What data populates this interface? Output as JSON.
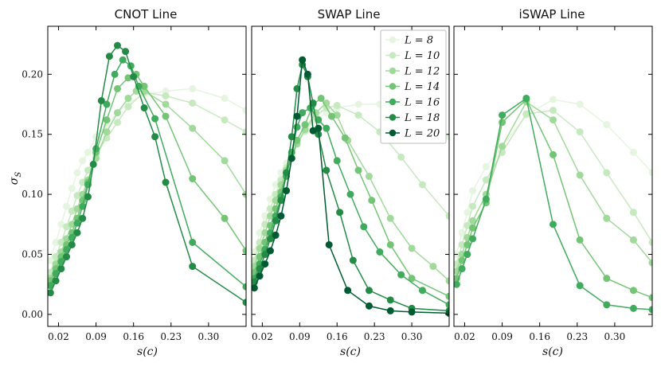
{
  "chart_data": {
    "type": "line",
    "ylabel": "σ_S",
    "xlabel": "s(c)",
    "xlim": [
      0.0,
      0.37
    ],
    "ylim": [
      -0.01,
      0.24
    ],
    "xticks": [
      0.02,
      0.09,
      0.16,
      0.23,
      0.3
    ],
    "xtick_labels": [
      "0.02",
      "0.09",
      "0.16",
      "0.23",
      "0.30"
    ],
    "yticks": [
      0.0,
      0.05,
      0.1,
      0.15,
      0.2
    ],
    "ytick_labels": [
      "0.00",
      "0.05",
      "0.10",
      "0.15",
      "0.20"
    ],
    "ylabel_text": "σ",
    "ylabel_sub": "S",
    "xlabel_text": "s(c)",
    "legend": {
      "placement": "top-right of middle panel",
      "entries": [
        "L = 8",
        "L = 10",
        "L = 12",
        "L = 14",
        "L = 16",
        "L = 18",
        "L = 20"
      ]
    },
    "series_colors": [
      "#e5f5e0",
      "#c7e9c0",
      "#a1d99b",
      "#74c476",
      "#41ab5d",
      "#238b45",
      "#005a32"
    ],
    "panels": [
      {
        "title": "CNOT Line",
        "series": [
          {
            "name": "L = 8",
            "x": [
              0.005,
              0.015,
              0.025,
              0.035,
              0.045,
              0.055,
              0.065,
              0.075,
              0.09,
              0.11,
              0.13,
              0.15,
              0.18,
              0.22,
              0.27,
              0.33,
              0.37
            ],
            "y": [
              0.045,
              0.06,
              0.075,
              0.09,
              0.105,
              0.118,
              0.128,
              0.135,
              0.148,
              0.158,
              0.168,
              0.176,
              0.183,
              0.186,
              0.188,
              0.18,
              0.17
            ]
          },
          {
            "name": "L = 10",
            "x": [
              0.005,
              0.015,
              0.025,
              0.035,
              0.045,
              0.055,
              0.065,
              0.075,
              0.09,
              0.11,
              0.13,
              0.15,
              0.18,
              0.22,
              0.27,
              0.33,
              0.37
            ],
            "y": [
              0.035,
              0.048,
              0.06,
              0.073,
              0.086,
              0.099,
              0.11,
              0.12,
              0.133,
              0.147,
              0.16,
              0.173,
              0.185,
              0.182,
              0.176,
              0.162,
              0.152
            ]
          },
          {
            "name": "L = 12",
            "x": [
              0.005,
              0.015,
              0.025,
              0.035,
              0.045,
              0.055,
              0.065,
              0.075,
              0.09,
              0.11,
              0.13,
              0.15,
              0.165,
              0.18,
              0.22,
              0.27,
              0.33,
              0.37
            ],
            "y": [
              0.03,
              0.042,
              0.052,
              0.063,
              0.075,
              0.088,
              0.1,
              0.112,
              0.13,
              0.152,
              0.168,
              0.18,
              0.186,
              0.186,
              0.175,
              0.155,
              0.128,
              0.1
            ]
          },
          {
            "name": "L = 14",
            "x": [
              0.005,
              0.015,
              0.025,
              0.035,
              0.045,
              0.055,
              0.065,
              0.075,
              0.09,
              0.11,
              0.13,
              0.15,
              0.165,
              0.18,
              0.22,
              0.27,
              0.33,
              0.37
            ],
            "y": [
              0.028,
              0.038,
              0.048,
              0.058,
              0.068,
              0.08,
              0.095,
              0.11,
              0.135,
              0.162,
              0.188,
              0.197,
              0.2,
              0.19,
              0.165,
              0.113,
              0.08,
              0.053
            ]
          },
          {
            "name": "L = 16",
            "x": [
              0.005,
              0.015,
              0.025,
              0.035,
              0.045,
              0.055,
              0.065,
              0.075,
              0.09,
              0.11,
              0.125,
              0.14,
              0.155,
              0.17,
              0.2,
              0.27,
              0.37
            ],
            "y": [
              0.024,
              0.034,
              0.044,
              0.054,
              0.064,
              0.076,
              0.09,
              0.108,
              0.138,
              0.175,
              0.2,
              0.212,
              0.207,
              0.19,
              0.163,
              0.06,
              0.023
            ]
          },
          {
            "name": "L = 18",
            "x": [
              0.005,
              0.015,
              0.025,
              0.035,
              0.045,
              0.055,
              0.065,
              0.075,
              0.085,
              0.1,
              0.115,
              0.13,
              0.145,
              0.16,
              0.18,
              0.2,
              0.22,
              0.27,
              0.37
            ],
            "y": [
              0.018,
              0.028,
              0.038,
              0.048,
              0.058,
              0.068,
              0.08,
              0.098,
              0.125,
              0.178,
              0.215,
              0.224,
              0.219,
              0.198,
              0.172,
              0.148,
              0.11,
              0.04,
              0.01
            ]
          }
        ]
      },
      {
        "title": "SWAP Line",
        "series": [
          {
            "name": "L = 8",
            "x": [
              0.005,
              0.015,
              0.025,
              0.035,
              0.045,
              0.055,
              0.065,
              0.075,
              0.085,
              0.1,
              0.12,
              0.14,
              0.16,
              0.2,
              0.24,
              0.28,
              0.32,
              0.37
            ],
            "y": [
              0.052,
              0.068,
              0.082,
              0.096,
              0.108,
              0.118,
              0.126,
              0.134,
              0.142,
              0.152,
              0.162,
              0.168,
              0.172,
              0.175,
              0.175,
              0.172,
              0.162,
              0.148
            ]
          },
          {
            "name": "L = 10",
            "x": [
              0.005,
              0.015,
              0.025,
              0.035,
              0.045,
              0.055,
              0.065,
              0.075,
              0.085,
              0.1,
              0.12,
              0.14,
              0.16,
              0.2,
              0.24,
              0.28,
              0.32,
              0.37
            ],
            "y": [
              0.045,
              0.06,
              0.075,
              0.088,
              0.1,
              0.112,
              0.122,
              0.132,
              0.142,
              0.153,
              0.165,
              0.172,
              0.174,
              0.166,
              0.152,
              0.131,
              0.108,
              0.082
            ]
          },
          {
            "name": "L = 12",
            "x": [
              0.005,
              0.015,
              0.025,
              0.035,
              0.045,
              0.055,
              0.065,
              0.075,
              0.085,
              0.1,
              0.12,
              0.14,
              0.16,
              0.18,
              0.22,
              0.26,
              0.3,
              0.34,
              0.37
            ],
            "y": [
              0.04,
              0.055,
              0.068,
              0.082,
              0.095,
              0.108,
              0.12,
              0.13,
              0.142,
              0.154,
              0.168,
              0.176,
              0.166,
              0.145,
              0.115,
              0.08,
              0.055,
              0.04,
              0.028
            ]
          },
          {
            "name": "L = 14",
            "x": [
              0.005,
              0.015,
              0.025,
              0.035,
              0.045,
              0.055,
              0.065,
              0.075,
              0.085,
              0.1,
              0.115,
              0.13,
              0.15,
              0.175,
              0.2,
              0.225,
              0.26,
              0.3,
              0.37
            ],
            "y": [
              0.035,
              0.048,
              0.06,
              0.074,
              0.088,
              0.102,
              0.118,
              0.13,
              0.145,
              0.158,
              0.175,
              0.18,
              0.165,
              0.147,
              0.12,
              0.095,
              0.058,
              0.03,
              0.015
            ]
          },
          {
            "name": "L = 16",
            "x": [
              0.005,
              0.015,
              0.025,
              0.035,
              0.045,
              0.055,
              0.065,
              0.075,
              0.085,
              0.095,
              0.11,
              0.125,
              0.14,
              0.16,
              0.185,
              0.21,
              0.24,
              0.28,
              0.32,
              0.37
            ],
            "y": [
              0.03,
              0.042,
              0.054,
              0.068,
              0.082,
              0.098,
              0.115,
              0.135,
              0.156,
              0.168,
              0.172,
              0.162,
              0.155,
              0.128,
              0.1,
              0.073,
              0.052,
              0.033,
              0.02,
              0.008
            ]
          },
          {
            "name": "L = 18",
            "x": [
              0.005,
              0.015,
              0.025,
              0.035,
              0.045,
              0.055,
              0.065,
              0.075,
              0.085,
              0.095,
              0.105,
              0.115,
              0.125,
              0.14,
              0.165,
              0.19,
              0.22,
              0.26,
              0.3,
              0.37
            ],
            "y": [
              0.027,
              0.038,
              0.05,
              0.063,
              0.078,
              0.095,
              0.118,
              0.148,
              0.188,
              0.208,
              0.198,
              0.176,
              0.15,
              0.12,
              0.085,
              0.045,
              0.02,
              0.012,
              0.005,
              0.003
            ]
          },
          {
            "name": "L = 20",
            "x": [
              0.005,
              0.015,
              0.025,
              0.035,
              0.045,
              0.055,
              0.065,
              0.075,
              0.085,
              0.095,
              0.105,
              0.115,
              0.125,
              0.145,
              0.18,
              0.22,
              0.26,
              0.3,
              0.37
            ],
            "y": [
              0.022,
              0.032,
              0.042,
              0.053,
              0.066,
              0.082,
              0.103,
              0.13,
              0.165,
              0.212,
              0.2,
              0.153,
              0.155,
              0.058,
              0.02,
              0.007,
              0.003,
              0.002,
              0.001
            ]
          }
        ]
      },
      {
        "title": "iSWAP Line",
        "series": [
          {
            "name": "L = 8",
            "x": [
              0.005,
              0.015,
              0.025,
              0.035,
              0.06,
              0.09,
              0.135,
              0.185,
              0.235,
              0.285,
              0.335,
              0.37
            ],
            "y": [
              0.05,
              0.068,
              0.085,
              0.103,
              0.123,
              0.14,
              0.166,
              0.179,
              0.175,
              0.158,
              0.135,
              0.118
            ]
          },
          {
            "name": "L = 10",
            "x": [
              0.005,
              0.015,
              0.025,
              0.035,
              0.06,
              0.09,
              0.135,
              0.185,
              0.235,
              0.285,
              0.335,
              0.37
            ],
            "y": [
              0.042,
              0.058,
              0.074,
              0.09,
              0.112,
              0.135,
              0.167,
              0.17,
              0.152,
              0.118,
              0.085,
              0.06
            ]
          },
          {
            "name": "L = 12",
            "x": [
              0.005,
              0.015,
              0.025,
              0.035,
              0.06,
              0.09,
              0.135,
              0.185,
              0.235,
              0.285,
              0.335,
              0.37
            ],
            "y": [
              0.036,
              0.05,
              0.064,
              0.078,
              0.1,
              0.14,
              0.177,
              0.162,
              0.116,
              0.08,
              0.062,
              0.043
            ]
          },
          {
            "name": "L = 14",
            "x": [
              0.005,
              0.015,
              0.025,
              0.035,
              0.06,
              0.09,
              0.135,
              0.185,
              0.235,
              0.285,
              0.335,
              0.37
            ],
            "y": [
              0.03,
              0.045,
              0.058,
              0.072,
              0.093,
              0.16,
              0.179,
              0.133,
              0.062,
              0.03,
              0.02,
              0.014
            ]
          },
          {
            "name": "L = 16",
            "x": [
              0.005,
              0.015,
              0.025,
              0.035,
              0.06,
              0.09,
              0.135,
              0.185,
              0.235,
              0.285,
              0.335,
              0.37
            ],
            "y": [
              0.025,
              0.038,
              0.05,
              0.063,
              0.096,
              0.166,
              0.18,
              0.075,
              0.024,
              0.008,
              0.005,
              0.004
            ]
          }
        ]
      }
    ]
  }
}
